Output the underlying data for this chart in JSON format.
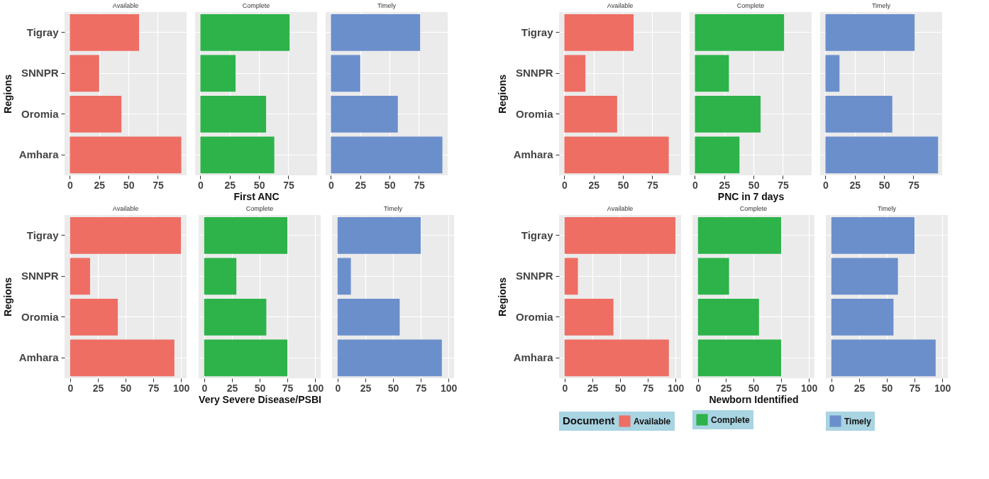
{
  "chart_data": [
    {
      "type": "bar",
      "orientation": "horizontal",
      "ylabel": "Regions",
      "categories": [
        "Tigray",
        "SNNPR",
        "Oromia",
        "Amhara"
      ],
      "xlim": [
        -4.5,
        99.5
      ],
      "xticks": [
        0,
        25,
        50,
        75
      ],
      "grid": true,
      "series": [
        {
          "name": "Available",
          "color": "#ee6e64",
          "values": [
            59,
            25,
            44,
            95
          ]
        }
      ]
    },
    {
      "type": "bar",
      "orientation": "horizontal",
      "xlabel": "First ANC",
      "categories": [
        null,
        null,
        null,
        null
      ],
      "xlim": [
        -4.5,
        99.5
      ],
      "xticks": [
        0,
        25,
        50,
        75
      ],
      "grid": true,
      "tick_labels": "x",
      "series": [
        {
          "name": "Complete",
          "color": "#2db34a",
          "values": [
            76,
            30,
            56,
            63
          ]
        }
      ]
    },
    {
      "type": "bar",
      "orientation": "horizontal",
      "categories": [
        null,
        null,
        null,
        null
      ],
      "xlim": [
        -4.5,
        99.5
      ],
      "xticks": [
        0,
        25,
        50,
        75
      ],
      "grid": true,
      "tick_labels": "x",
      "series": [
        {
          "name": "Timely",
          "color": "#6b8fcb",
          "values": [
            76,
            25,
            57,
            95
          ]
        }
      ]
    },
    {
      "type": "bar",
      "orientation": "horizontal",
      "ylabel": "Regions",
      "categories": [
        "Tigray",
        "SNNPR",
        "Oromia",
        "Amhara"
      ],
      "xlim": [
        -4.5,
        99.5
      ],
      "xticks": [
        0,
        25,
        50,
        75
      ],
      "grid": true,
      "series": [
        {
          "name": "Available",
          "color": "#ee6e64",
          "values": [
            59,
            18,
            45,
            89
          ]
        }
      ]
    },
    {
      "type": "bar",
      "orientation": "horizontal",
      "xlabel": "PNC in 7 days",
      "categories": [
        null,
        null,
        null,
        null
      ],
      "xlim": [
        -4.5,
        99.5
      ],
      "xticks": [
        0,
        25,
        50,
        75
      ],
      "grid": true,
      "tick_labels": "x",
      "series": [
        {
          "name": "Complete",
          "color": "#2db34a",
          "values": [
            76,
            29,
            56,
            38
          ]
        }
      ]
    },
    {
      "type": "bar",
      "orientation": "horizontal",
      "categories": [
        null,
        null,
        null,
        null
      ],
      "xlim": [
        -4.5,
        99.5
      ],
      "xticks": [
        0,
        25,
        50,
        75
      ],
      "grid": true,
      "tick_labels": "x",
      "series": [
        {
          "name": "Timely",
          "color": "#6b8fcb",
          "values": [
            76,
            12,
            57,
            96
          ]
        }
      ]
    },
    {
      "type": "bar",
      "orientation": "horizontal",
      "ylabel": "Regions",
      "categories": [
        "Tigray",
        "SNNPR",
        "Oromia",
        "Amhara"
      ],
      "xlim": [
        -5,
        105
      ],
      "xticks": [
        0,
        25,
        50,
        75,
        100
      ],
      "grid": true,
      "series": [
        {
          "name": "Available",
          "color": "#ee6e64",
          "values": [
            100,
            18,
            43,
            94
          ]
        }
      ]
    },
    {
      "type": "bar",
      "orientation": "horizontal",
      "xlabel": "Very Severe Disease/PSBI",
      "categories": [
        null,
        null,
        null,
        null
      ],
      "xlim": [
        -5,
        105
      ],
      "xticks": [
        0,
        25,
        50,
        75,
        100
      ],
      "grid": true,
      "tick_labels": "x",
      "series": [
        {
          "name": "Complete",
          "color": "#2db34a",
          "values": [
            75,
            29,
            56,
            75
          ]
        }
      ]
    },
    {
      "type": "bar",
      "orientation": "horizontal",
      "categories": [
        null,
        null,
        null,
        null
      ],
      "xlim": [
        -5,
        105
      ],
      "xticks": [
        0,
        25,
        50,
        75,
        100
      ],
      "grid": true,
      "tick_labels": "x",
      "series": [
        {
          "name": "Timely",
          "color": "#6b8fcb",
          "values": [
            75,
            12,
            56,
            94
          ]
        }
      ]
    },
    {
      "type": "bar",
      "orientation": "horizontal",
      "ylabel": "Regions",
      "categories": [
        "Tigray",
        "SNNPR",
        "Oromia",
        "Amhara"
      ],
      "xlim": [
        -5,
        105
      ],
      "xticks": [
        0,
        25,
        50,
        75,
        100
      ],
      "grid": true,
      "legend": "bottom",
      "legend_title": "Document",
      "series": [
        {
          "name": "Available",
          "color": "#ee6e64",
          "values": [
            100,
            12,
            44,
            94
          ]
        }
      ]
    },
    {
      "type": "bar",
      "orientation": "horizontal",
      "xlabel": "Newborn Identified",
      "categories": [
        null,
        null,
        null,
        null
      ],
      "xlim": [
        -5,
        105
      ],
      "xticks": [
        0,
        25,
        50,
        75,
        100
      ],
      "grid": true,
      "tick_labels": "x",
      "legend": "bottom",
      "series": [
        {
          "name": "Complete",
          "color": "#2db34a",
          "values": [
            75,
            28,
            55,
            75
          ]
        }
      ]
    },
    {
      "type": "bar",
      "orientation": "horizontal",
      "categories": [
        null,
        null,
        null,
        null
      ],
      "xlim": [
        -5,
        105
      ],
      "xticks": [
        0,
        25,
        50,
        75,
        100
      ],
      "grid": true,
      "tick_labels": "x",
      "legend": "bottom",
      "series": [
        {
          "name": "Timely",
          "color": "#6b8fcb",
          "values": [
            75,
            60,
            56,
            94
          ]
        }
      ]
    }
  ]
}
